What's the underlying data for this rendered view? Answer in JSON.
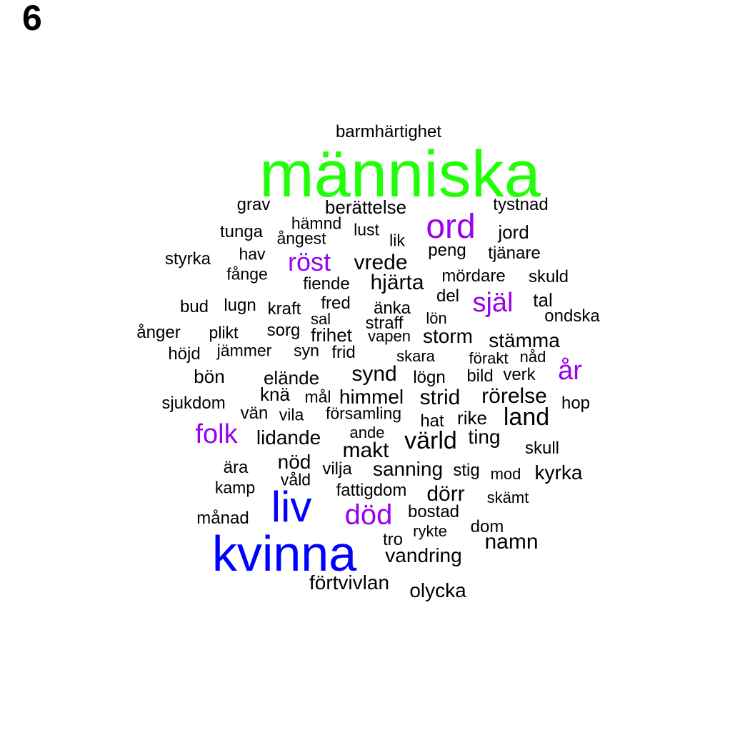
{
  "panel_label": "6",
  "colors": {
    "large": "#21ff08",
    "medium": "#0000ff",
    "accent": "#9900ee",
    "default": "#000000"
  },
  "words": [
    {
      "text": "människa",
      "tier": "large"
    },
    {
      "text": "kvinna",
      "tier": "medium"
    },
    {
      "text": "liv",
      "tier": "medium"
    },
    {
      "text": "ord",
      "tier": "accent"
    },
    {
      "text": "död",
      "tier": "accent"
    },
    {
      "text": "folk",
      "tier": "accent"
    },
    {
      "text": "år",
      "tier": "accent"
    },
    {
      "text": "själ",
      "tier": "accent"
    },
    {
      "text": "röst",
      "tier": "accent"
    },
    {
      "text": "barmhärtighet",
      "tier": "default"
    },
    {
      "text": "grav",
      "tier": "default"
    },
    {
      "text": "berättelse",
      "tier": "default"
    },
    {
      "text": "tystnad",
      "tier": "default"
    },
    {
      "text": "hämnd",
      "tier": "default"
    },
    {
      "text": "tunga",
      "tier": "default"
    },
    {
      "text": "ångest",
      "tier": "default"
    },
    {
      "text": "lust",
      "tier": "default"
    },
    {
      "text": "lik",
      "tier": "default"
    },
    {
      "text": "jord",
      "tier": "default"
    },
    {
      "text": "styrka",
      "tier": "default"
    },
    {
      "text": "hav",
      "tier": "default"
    },
    {
      "text": "vrede",
      "tier": "default"
    },
    {
      "text": "peng",
      "tier": "default"
    },
    {
      "text": "tjänare",
      "tier": "default"
    },
    {
      "text": "fånge",
      "tier": "default"
    },
    {
      "text": "fiende",
      "tier": "default"
    },
    {
      "text": "hjärta",
      "tier": "default"
    },
    {
      "text": "mördare",
      "tier": "default"
    },
    {
      "text": "skuld",
      "tier": "default"
    },
    {
      "text": "bud",
      "tier": "default"
    },
    {
      "text": "lugn",
      "tier": "default"
    },
    {
      "text": "kraft",
      "tier": "default"
    },
    {
      "text": "fred",
      "tier": "default"
    },
    {
      "text": "del",
      "tier": "default"
    },
    {
      "text": "tal",
      "tier": "default"
    },
    {
      "text": "sal",
      "tier": "default"
    },
    {
      "text": "änka",
      "tier": "default"
    },
    {
      "text": "lön",
      "tier": "default"
    },
    {
      "text": "ondska",
      "tier": "default"
    },
    {
      "text": "straff",
      "tier": "default"
    },
    {
      "text": "ånger",
      "tier": "default"
    },
    {
      "text": "plikt",
      "tier": "default"
    },
    {
      "text": "sorg",
      "tier": "default"
    },
    {
      "text": "frihet",
      "tier": "default"
    },
    {
      "text": "vapen",
      "tier": "default"
    },
    {
      "text": "storm",
      "tier": "default"
    },
    {
      "text": "stämma",
      "tier": "default"
    },
    {
      "text": "höjd",
      "tier": "default"
    },
    {
      "text": "jämmer",
      "tier": "default"
    },
    {
      "text": "syn",
      "tier": "default"
    },
    {
      "text": "frid",
      "tier": "default"
    },
    {
      "text": "skara",
      "tier": "default"
    },
    {
      "text": "förakt",
      "tier": "default"
    },
    {
      "text": "nåd",
      "tier": "default"
    },
    {
      "text": "bön",
      "tier": "default"
    },
    {
      "text": "elände",
      "tier": "default"
    },
    {
      "text": "synd",
      "tier": "default"
    },
    {
      "text": "lögn",
      "tier": "default"
    },
    {
      "text": "bild",
      "tier": "default"
    },
    {
      "text": "verk",
      "tier": "default"
    },
    {
      "text": "knä",
      "tier": "default"
    },
    {
      "text": "mål",
      "tier": "default"
    },
    {
      "text": "himmel",
      "tier": "default"
    },
    {
      "text": "strid",
      "tier": "default"
    },
    {
      "text": "rörelse",
      "tier": "default"
    },
    {
      "text": "sjukdom",
      "tier": "default"
    },
    {
      "text": "hop",
      "tier": "default"
    },
    {
      "text": "vän",
      "tier": "default"
    },
    {
      "text": "vila",
      "tier": "default"
    },
    {
      "text": "församling",
      "tier": "default"
    },
    {
      "text": "hat",
      "tier": "default"
    },
    {
      "text": "rike",
      "tier": "default"
    },
    {
      "text": "land",
      "tier": "default"
    },
    {
      "text": "lidande",
      "tier": "default"
    },
    {
      "text": "ande",
      "tier": "default"
    },
    {
      "text": "värld",
      "tier": "default"
    },
    {
      "text": "ting",
      "tier": "default"
    },
    {
      "text": "makt",
      "tier": "default"
    },
    {
      "text": "skull",
      "tier": "default"
    },
    {
      "text": "ära",
      "tier": "default"
    },
    {
      "text": "nöd",
      "tier": "default"
    },
    {
      "text": "vilja",
      "tier": "default"
    },
    {
      "text": "sanning",
      "tier": "default"
    },
    {
      "text": "stig",
      "tier": "default"
    },
    {
      "text": "mod",
      "tier": "default"
    },
    {
      "text": "kyrka",
      "tier": "default"
    },
    {
      "text": "våld",
      "tier": "default"
    },
    {
      "text": "kamp",
      "tier": "default"
    },
    {
      "text": "fattigdom",
      "tier": "default"
    },
    {
      "text": "dörr",
      "tier": "default"
    },
    {
      "text": "skämt",
      "tier": "default"
    },
    {
      "text": "bostad",
      "tier": "default"
    },
    {
      "text": "månad",
      "tier": "default"
    },
    {
      "text": "dom",
      "tier": "default"
    },
    {
      "text": "tro",
      "tier": "default"
    },
    {
      "text": "rykte",
      "tier": "default"
    },
    {
      "text": "namn",
      "tier": "default"
    },
    {
      "text": "vandring",
      "tier": "default"
    },
    {
      "text": "förtvivlan",
      "tier": "default"
    },
    {
      "text": "olycka",
      "tier": "default"
    }
  ]
}
